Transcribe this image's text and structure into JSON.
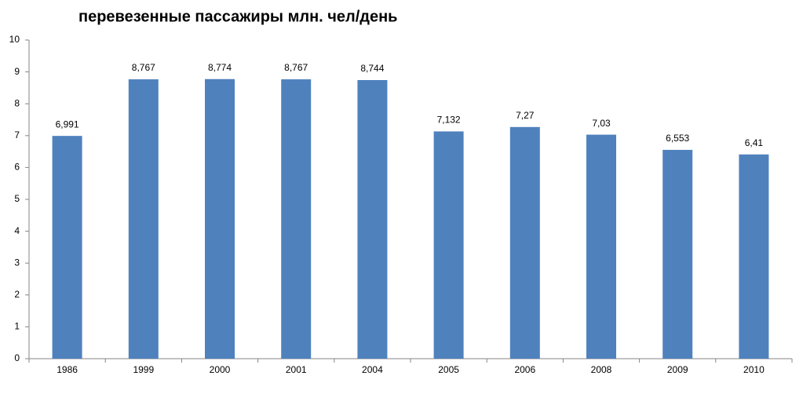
{
  "chart_data": {
    "type": "bar",
    "title": "перевезенные пассажиры млн. чел/день",
    "categories": [
      "1986",
      "1999",
      "2000",
      "2001",
      "2004",
      "2005",
      "2006",
      "2008",
      "2009",
      "2010"
    ],
    "values": [
      6.991,
      8.767,
      8.774,
      8.767,
      8.744,
      7.132,
      7.27,
      7.03,
      6.553,
      6.41
    ],
    "value_labels": [
      "6,991",
      "8,767",
      "8,774",
      "8,767",
      "8,744",
      "7,132",
      "7,27",
      "7,03",
      "6,553",
      "6,41"
    ],
    "color": "#4f81bd",
    "ylim": [
      0,
      10
    ],
    "yticks": [
      0,
      1,
      2,
      3,
      4,
      5,
      6,
      7,
      8,
      9,
      10
    ],
    "grid": false
  }
}
